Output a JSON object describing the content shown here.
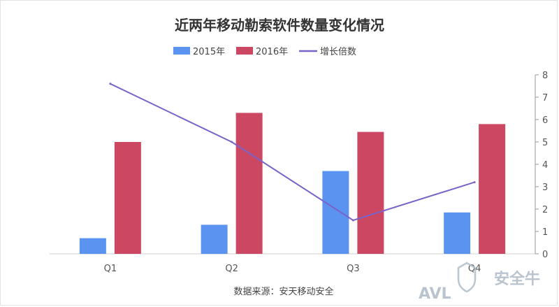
{
  "chart_data": {
    "type": "bar",
    "title": "近两年移动勒索软件数量变化情况",
    "categories": [
      "Q1",
      "Q2",
      "Q3",
      "Q4"
    ],
    "series": [
      {
        "name": "2015年",
        "kind": "bar",
        "axis": "left",
        "color": "#5b93f0",
        "values": [
          0.7,
          1.3,
          3.7,
          1.85
        ]
      },
      {
        "name": "2016年",
        "kind": "bar",
        "axis": "left",
        "color": "#cc4762",
        "values": [
          5.0,
          6.3,
          5.45,
          5.8
        ]
      },
      {
        "name": "增长倍数",
        "kind": "line",
        "axis": "right",
        "color": "#7a63c8",
        "values": [
          7.6,
          5.0,
          1.5,
          3.2
        ]
      }
    ],
    "y_right": {
      "ylim": [
        0,
        8
      ],
      "ticks": [
        "0",
        "1",
        "2",
        "3",
        "4",
        "5",
        "6",
        "7",
        "8"
      ]
    },
    "y_left_max": 8,
    "legend_position": "top-center",
    "grid": false,
    "source_note": "数据来源：安天移动安全"
  },
  "watermark": {
    "brand": "安全牛",
    "logo_text": "AVL"
  }
}
